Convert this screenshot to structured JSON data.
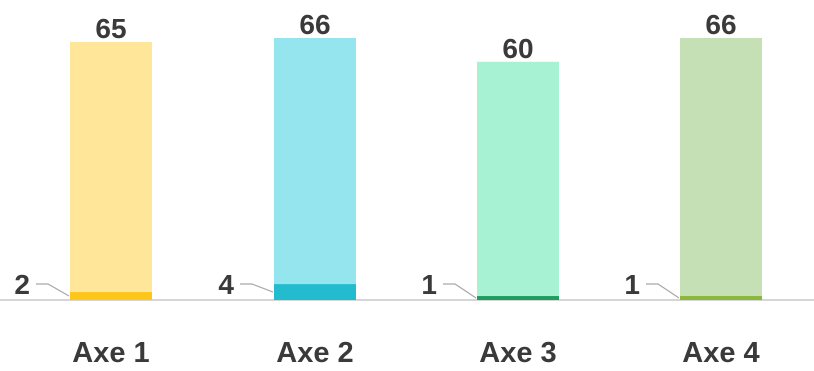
{
  "chart_data": {
    "type": "bar",
    "categories": [
      "Axe 1",
      "Axe 2",
      "Axe 3",
      "Axe 4"
    ],
    "series": [
      {
        "values": [
          65,
          66,
          60,
          66
        ]
      },
      {
        "values": [
          2,
          4,
          1,
          1
        ]
      }
    ],
    "ylim": [
      0,
      66
    ],
    "grid": false,
    "legend": "none",
    "colors": {
      "total": [
        "#ffe699",
        "#95e5ee",
        "#a6f2d2",
        "#c5e0b4"
      ],
      "part": [
        "#ffc61a",
        "#23bccf",
        "#1f9d60",
        "#8bb73a"
      ],
      "axis": "#c8c8c8",
      "leader": "#a8a8a8",
      "text": "#3a3a3a"
    }
  }
}
